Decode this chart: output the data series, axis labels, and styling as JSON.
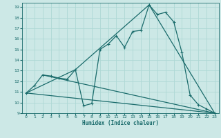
{
  "xlabel": "Humidex (Indice chaleur)",
  "bg_color": "#cce8e6",
  "grid_color": "#aed8d5",
  "line_color": "#1a6b6b",
  "xlim": [
    -0.5,
    23.5
  ],
  "ylim": [
    9,
    19.4
  ],
  "xticks": [
    0,
    1,
    2,
    3,
    4,
    5,
    6,
    7,
    8,
    9,
    10,
    11,
    12,
    13,
    14,
    15,
    16,
    17,
    18,
    19,
    20,
    21,
    22,
    23
  ],
  "yticks": [
    9,
    10,
    11,
    12,
    13,
    14,
    15,
    16,
    17,
    18,
    19
  ],
  "line1_x": [
    0,
    1,
    2,
    3,
    4,
    5,
    6,
    7,
    8,
    9,
    10,
    11,
    12,
    13,
    14,
    15,
    16,
    17,
    18,
    19,
    20,
    21,
    22,
    23
  ],
  "line1_y": [
    10.9,
    11.6,
    12.6,
    12.5,
    12.3,
    12.2,
    13.1,
    9.7,
    9.9,
    15.0,
    15.5,
    16.3,
    15.2,
    16.7,
    16.8,
    19.2,
    18.3,
    18.5,
    17.6,
    14.7,
    10.7,
    9.8,
    9.4,
    9.0
  ],
  "line2_x": [
    0,
    6,
    15,
    23
  ],
  "line2_y": [
    10.9,
    13.1,
    19.2,
    9.0
  ],
  "line3_x": [
    2,
    23
  ],
  "line3_y": [
    12.6,
    9.0
  ],
  "line4_x": [
    0,
    23
  ],
  "line4_y": [
    10.9,
    9.0
  ]
}
